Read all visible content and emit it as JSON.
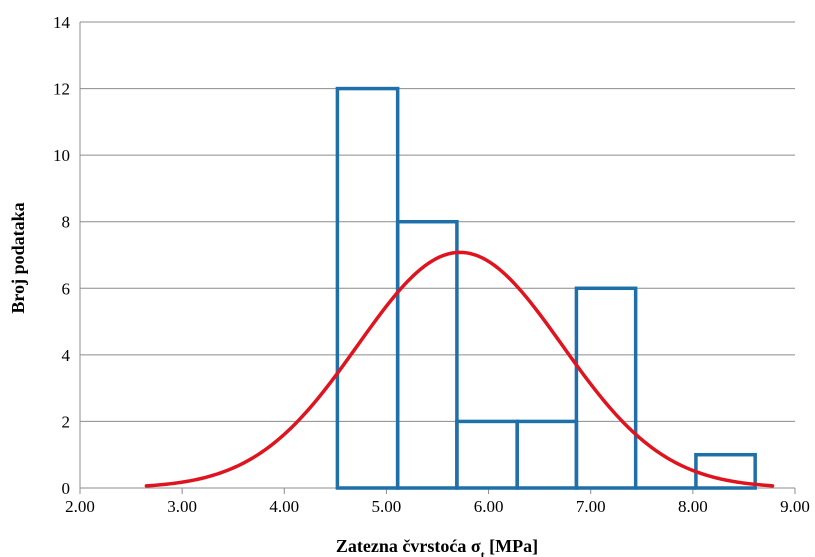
{
  "chart_data": {
    "type": "bar",
    "subtype": "histogram-with-normal-curve",
    "xlabel": "Zatezna čvrstoća σ",
    "xlabel_subscript": "t",
    "xlabel_unit": " [MPa]",
    "ylabel": "Broj podataka",
    "xlim": [
      2.0,
      9.0
    ],
    "ylim": [
      0,
      14
    ],
    "x_ticks": [
      "2.00",
      "3.00",
      "4.00",
      "5.00",
      "6.00",
      "7.00",
      "8.00",
      "9.00"
    ],
    "y_ticks": [
      "0",
      "2",
      "4",
      "6",
      "8",
      "10",
      "12",
      "14"
    ],
    "grid": "horizontal",
    "histogram": {
      "bins": [
        {
          "start": 4.52,
          "end": 5.11,
          "count": 12
        },
        {
          "start": 5.11,
          "end": 5.69,
          "count": 8
        },
        {
          "start": 5.69,
          "end": 6.28,
          "count": 2
        },
        {
          "start": 6.28,
          "end": 6.86,
          "count": 2
        },
        {
          "start": 6.86,
          "end": 7.44,
          "count": 6
        },
        {
          "start": 7.44,
          "end": 8.03,
          "count": 0
        },
        {
          "start": 8.03,
          "end": 8.61,
          "count": 1
        }
      ],
      "color": "#1f6fa8"
    },
    "normal_curve": {
      "mean": 5.72,
      "std": 1.0,
      "peak": 7.08,
      "x_range": [
        2.65,
        8.78
      ],
      "color": "#e0141e"
    }
  }
}
